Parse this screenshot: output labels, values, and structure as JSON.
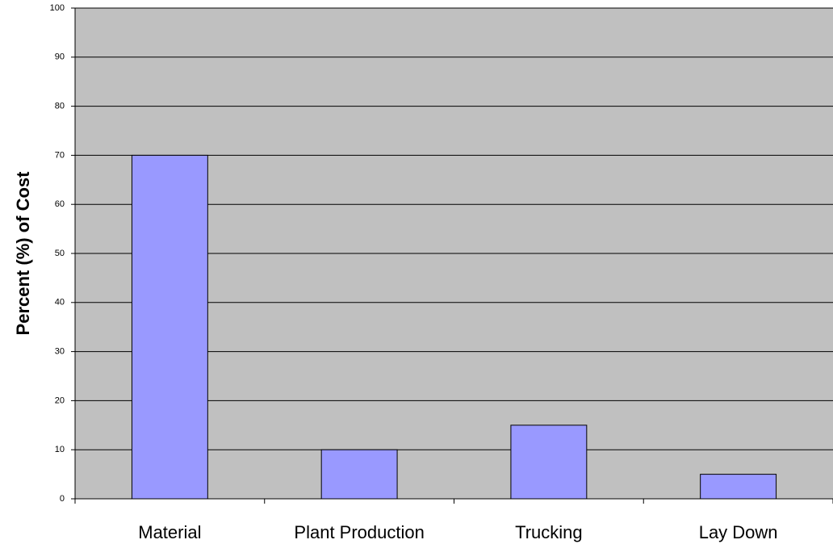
{
  "chart_data": {
    "type": "bar",
    "y_label": "Percent (%) of Cost",
    "categories": [
      "Material",
      "Plant Production",
      "Trucking",
      "Lay Down"
    ],
    "values": [
      70,
      10,
      15,
      5
    ],
    "color": "#9999ff",
    "plot_background": "#c0c0c0",
    "ylim": [
      0,
      100
    ],
    "yticks": [
      0,
      10,
      20,
      30,
      40,
      50,
      60,
      70,
      80,
      90,
      100
    ],
    "grid": true
  }
}
